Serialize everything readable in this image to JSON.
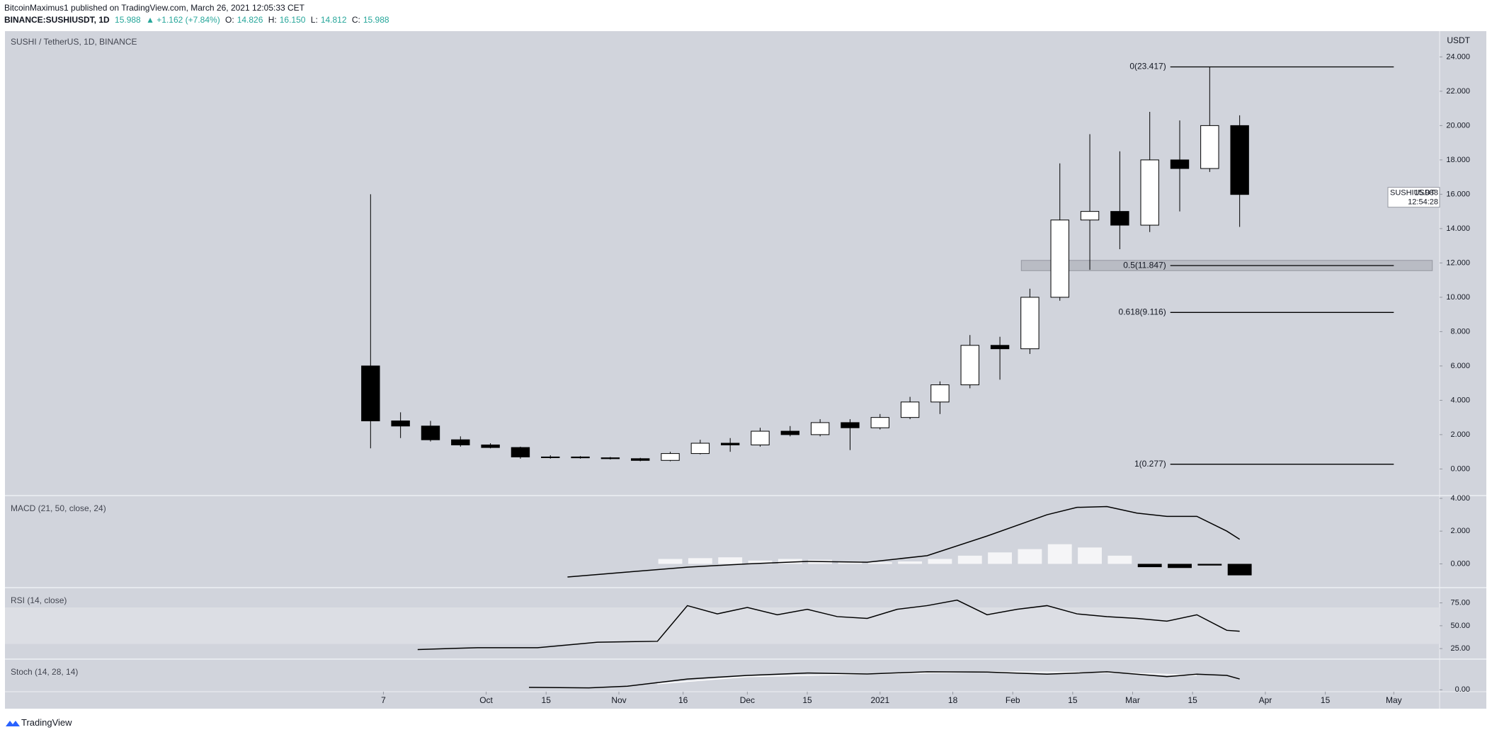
{
  "header": {
    "author_line": "BitcoinMaximus1 published on TradingView.com, March 26, 2021 12:05:33 CET",
    "symbol": "BINANCE:SUSHIUSDT, 1D",
    "last": "15.988",
    "change": "▲ +1.162 (+7.84%)",
    "ohlc": [
      {
        "label": "O:",
        "value": "14.826"
      },
      {
        "label": "H:",
        "value": "16.150"
      },
      {
        "label": "L:",
        "value": "14.812"
      },
      {
        "label": "C:",
        "value": "15.988"
      }
    ]
  },
  "footer": {
    "brand": "TradingView"
  },
  "chart_data": [
    {
      "type": "candlestick",
      "title": "SUSHI / TetherUS, 1D, BINANCE",
      "axis_unit": "USDT",
      "x": [
        1,
        8,
        15,
        22,
        29,
        36,
        43,
        50,
        57,
        64,
        71,
        78,
        85,
        92,
        99,
        106,
        113,
        120,
        127,
        134,
        141,
        148,
        155,
        162,
        169,
        176,
        183,
        190,
        197,
        204
      ],
      "open": [
        6.0,
        2.8,
        2.5,
        1.7,
        1.4,
        1.25,
        0.7,
        0.7,
        0.65,
        0.6,
        0.5,
        0.9,
        1.5,
        1.4,
        2.2,
        2.0,
        2.7,
        2.4,
        3.0,
        3.9,
        4.9,
        7.2,
        7.0,
        10.0,
        14.5,
        15.0,
        14.2,
        18.0,
        17.5,
        20.0
      ],
      "high": [
        16.0,
        3.3,
        2.8,
        1.9,
        1.5,
        1.3,
        0.8,
        0.75,
        0.7,
        0.65,
        1.0,
        1.7,
        1.8,
        2.4,
        2.5,
        2.9,
        2.9,
        3.2,
        4.2,
        5.1,
        7.8,
        7.7,
        10.5,
        17.8,
        19.5,
        18.5,
        20.8,
        20.3,
        23.417,
        20.6
      ],
      "low": [
        1.2,
        1.8,
        1.6,
        1.3,
        1.2,
        0.6,
        0.6,
        0.6,
        0.55,
        0.45,
        0.45,
        0.85,
        1.0,
        1.3,
        1.9,
        1.9,
        1.1,
        2.3,
        2.9,
        3.2,
        4.7,
        5.2,
        6.7,
        9.8,
        11.6,
        12.8,
        13.8,
        15.0,
        17.3,
        14.1
      ],
      "close": [
        2.8,
        2.5,
        1.7,
        1.4,
        1.25,
        0.7,
        0.7,
        0.65,
        0.6,
        0.5,
        0.9,
        1.5,
        1.4,
        2.2,
        2.0,
        2.7,
        2.4,
        3.0,
        3.9,
        4.9,
        7.2,
        7.0,
        10.0,
        14.5,
        15.0,
        14.2,
        18.0,
        17.5,
        20.0,
        15.988
      ],
      "up_color": "#ffffff",
      "down_color": "#000000",
      "xlim": [
        -81.4,
        253.7
      ],
      "xticks": [
        7,
        {
          "value": 31,
          "label": "Oct"
        },
        {
          "value": 45,
          "label": "15"
        },
        {
          "value": 62,
          "label": "Nov"
        },
        {
          "value": 77,
          "label": "16"
        },
        {
          "value": 92,
          "label": "Dec"
        },
        {
          "value": 106,
          "label": "15"
        },
        {
          "value": 123,
          "label": "2021"
        },
        {
          "value": 140,
          "label": "18"
        },
        {
          "value": 154,
          "label": "Feb"
        },
        {
          "value": 168,
          "label": "15"
        },
        {
          "value": 182,
          "label": "Mar"
        },
        {
          "value": 196,
          "label": "15"
        },
        {
          "value": 213,
          "label": "Apr"
        },
        {
          "value": 227,
          "label": "15"
        },
        {
          "value": 243,
          "label": "May"
        }
      ],
      "ylim": [
        -1.55,
        25.5
      ],
      "yticks": [
        {
          "value": 0,
          "label": "0.000"
        },
        {
          "value": 2,
          "label": "2.000"
        },
        {
          "value": 4,
          "label": "4.000"
        },
        {
          "value": 6,
          "label": "6.000"
        },
        {
          "value": 8,
          "label": "8.000"
        },
        {
          "value": 10,
          "label": "10.000"
        },
        {
          "value": 12,
          "label": "12.000"
        },
        {
          "value": 14,
          "label": "14.000"
        },
        {
          "value": 16,
          "label": "16.000"
        },
        {
          "value": 18,
          "label": "18.000"
        },
        {
          "value": 20,
          "label": "20.000"
        },
        {
          "value": 22,
          "label": "22.000"
        },
        {
          "value": 24,
          "label": "24.000"
        }
      ],
      "fib_levels": [
        {
          "value": 23.417,
          "label": "0(23.417)"
        },
        {
          "value": 11.847,
          "label": "0.5(11.847)"
        },
        {
          "value": 9.116,
          "label": "0.618(9.116)"
        },
        {
          "value": 0.277,
          "label": "1(0.277)"
        }
      ],
      "fib_x": [
        190.8,
        243
      ],
      "zone": {
        "x": [
          156,
          252
        ],
        "y": [
          11.55,
          12.15
        ]
      },
      "symbol_label": "SUSHIUSDT",
      "last_price": 15.988,
      "countdown": "12:54:28"
    },
    {
      "type": "combo",
      "title": "MACD (21, 50, close, 24)",
      "ylim": [
        -1.45,
        4.17
      ],
      "yticks": [
        {
          "value": 0,
          "label": "0.000"
        },
        {
          "value": 2,
          "label": "2.000"
        },
        {
          "value": 4,
          "label": "4.000"
        }
      ],
      "series": [
        {
          "name": "Histogram",
          "kind": "bar",
          "positive_color": "#f5f5f7",
          "negative_color": "#000000",
          "x": [
            71,
            78,
            85,
            92,
            99,
            106,
            113,
            120,
            127,
            134,
            141,
            148,
            155,
            162,
            169,
            176,
            183,
            190,
            197,
            204
          ],
          "values": [
            0.3,
            0.35,
            0.4,
            0.2,
            0.3,
            0.25,
            0.15,
            0.1,
            0.15,
            0.3,
            0.5,
            0.7,
            0.9,
            1.2,
            1.0,
            0.5,
            -0.2,
            -0.25,
            -0.1,
            -0.7
          ]
        },
        {
          "name": "MACD",
          "kind": "line",
          "color": "#000000",
          "x": [
            50,
            64,
            78,
            92,
            106,
            120,
            134,
            148,
            162,
            169,
            176,
            183,
            190,
            197,
            204,
            207
          ],
          "values": [
            -0.8,
            -0.5,
            -0.2,
            0.0,
            0.15,
            0.1,
            0.5,
            1.7,
            3.0,
            3.45,
            3.5,
            3.1,
            2.9,
            2.9,
            2.0,
            1.5
          ]
        }
      ]
    },
    {
      "type": "line",
      "title": "RSI (14, close)",
      "ylim": [
        13.5,
        91.7
      ],
      "yticks": [
        {
          "value": 25,
          "label": "25.00"
        },
        {
          "value": 50,
          "label": "50.00"
        },
        {
          "value": 75,
          "label": "75.00"
        }
      ],
      "band": [
        30,
        70
      ],
      "band_color": "#dcdee4",
      "series": [
        {
          "name": "RSI",
          "color": "#000000",
          "x": [
            15,
            29,
            43,
            57,
            71,
            78,
            85,
            92,
            99,
            106,
            113,
            120,
            127,
            134,
            141,
            148,
            155,
            162,
            169,
            176,
            183,
            190,
            197,
            204,
            207
          ],
          "values": [
            24,
            26,
            26,
            32,
            33,
            72,
            63,
            70,
            62,
            68,
            60,
            58,
            68,
            72,
            78,
            62,
            68,
            72,
            63,
            60,
            58,
            55,
            62,
            45,
            44
          ]
        }
      ]
    },
    {
      "type": "line",
      "title": "Stoch (14, 28, 14)",
      "ylim": [
        -8,
        128
      ],
      "yticks": [
        {
          "value": 0,
          "label": "0.00"
        }
      ],
      "series": [
        {
          "name": "%D",
          "color": "#ffffff",
          "x": [
            71,
            92,
            120,
            148,
            176,
            197
          ],
          "values": [
            25,
            55,
            66,
            75,
            72,
            60
          ]
        },
        {
          "name": "%K",
          "color": "#000000",
          "x": [
            41,
            55,
            64,
            78,
            92,
            106,
            120,
            134,
            148,
            162,
            176,
            190,
            197,
            204,
            207
          ],
          "values": [
            10,
            8,
            15,
            45,
            60,
            70,
            66,
            75,
            74,
            65,
            75,
            55,
            65,
            60,
            45
          ]
        }
      ]
    }
  ]
}
